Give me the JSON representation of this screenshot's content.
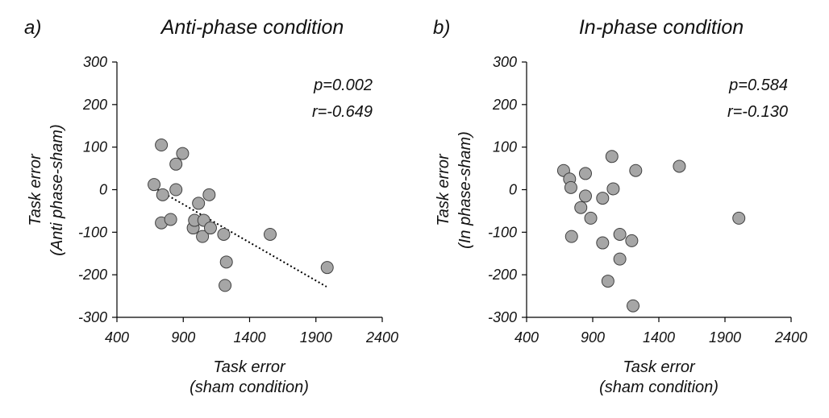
{
  "chart_data": [
    {
      "type": "scatter",
      "panel_label": "a)",
      "title": "Anti-phase condition",
      "xlabel": [
        "Task error",
        "(sham condition)"
      ],
      "ylabel": [
        "Task error",
        "(Anti phase-sham)"
      ],
      "xlim": [
        400,
        2400
      ],
      "ylim": [
        -300,
        300
      ],
      "xticks": [
        "400",
        "900",
        "1400",
        "1900",
        "2400"
      ],
      "yticks": [
        "300",
        "200",
        "100",
        "0",
        "-100",
        "-200",
        "-300"
      ],
      "grid": false,
      "annotations": [
        "p=0.002",
        "r=-0.649"
      ],
      "trendline": {
        "style": "dotted",
        "x": [
          680,
          1980
        ],
        "y": [
          5,
          -228
        ]
      },
      "series": [
        {
          "x": [
            680,
            735,
            745,
            735,
            805,
            845,
            845,
            895,
            975,
            985,
            1015,
            1045,
            1055,
            1095,
            1105,
            1205,
            1225,
            1215,
            1555,
            1985
          ],
          "y": [
            12,
            105,
            -12,
            -78,
            -70,
            60,
            0,
            85,
            -90,
            -72,
            -32,
            -110,
            -72,
            -12,
            -90,
            -105,
            -170,
            -225,
            -105,
            -183
          ]
        }
      ]
    },
    {
      "type": "scatter",
      "panel_label": "b)",
      "title": "In-phase condition",
      "xlabel": [
        "Task error",
        "(sham condition)"
      ],
      "ylabel": [
        "Task error",
        "(In phase-sham)"
      ],
      "xlim": [
        400,
        2400
      ],
      "ylim": [
        -300,
        300
      ],
      "xticks": [
        "400",
        "900",
        "1400",
        "1900",
        "2400"
      ],
      "yticks": [
        "300",
        "200",
        "100",
        "0",
        "-100",
        "-200",
        "-300"
      ],
      "grid": false,
      "annotations": [
        "p=0.584",
        "r=-0.130"
      ],
      "series": [
        {
          "x": [
            680,
            725,
            735,
            740,
            810,
            845,
            845,
            885,
            975,
            975,
            1015,
            1045,
            1055,
            1105,
            1105,
            1195,
            1205,
            1225,
            1555,
            2005
          ],
          "y": [
            45,
            25,
            5,
            -110,
            -42,
            38,
            -15,
            -67,
            -20,
            -125,
            -215,
            78,
            2,
            -105,
            -163,
            -120,
            -273,
            45,
            55,
            -67
          ]
        }
      ]
    }
  ],
  "colors": {
    "marker_fill": "#a6a6a6",
    "marker_stroke": "#404040",
    "axis": "#000000"
  }
}
